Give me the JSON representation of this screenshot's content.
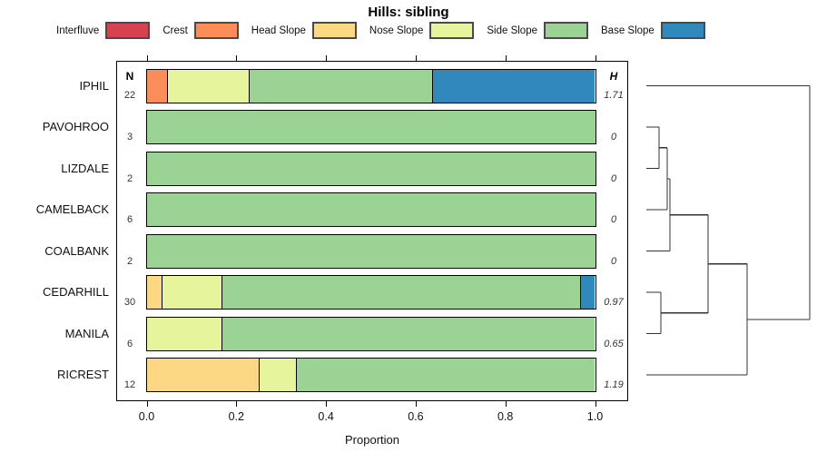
{
  "chart_data": {
    "type": "bar",
    "orientation": "horizontal",
    "stacked": true,
    "title": "Hills: sibling",
    "xlabel": "Proportion",
    "xlim": [
      0,
      1
    ],
    "x_tick_labels": [
      "0.0",
      "0.2",
      "0.4",
      "0.6",
      "0.8",
      "1.0"
    ],
    "x_tick_values": [
      0,
      0.2,
      0.4,
      0.6,
      0.8,
      1.0
    ],
    "grid": false,
    "legend_position": "top",
    "n_header": "N",
    "h_header": "H",
    "classes": [
      {
        "label": "Interfluve",
        "color": "#d6424e"
      },
      {
        "label": "Crest",
        "color": "#fb8d58"
      },
      {
        "label": "Head Slope",
        "color": "#fcd884"
      },
      {
        "label": "Nose Slope",
        "color": "#e6f59b"
      },
      {
        "label": "Side Slope",
        "color": "#9ad394"
      },
      {
        "label": "Base Slope",
        "color": "#3088bd"
      }
    ],
    "rows": [
      {
        "name": "IPHIL",
        "n": 22,
        "h": "1.71",
        "segments": [
          {
            "class": "Crest",
            "p": 0.045
          },
          {
            "class": "Nose Slope",
            "p": 0.182
          },
          {
            "class": "Side Slope",
            "p": 0.409
          },
          {
            "class": "Base Slope",
            "p": 0.364
          }
        ]
      },
      {
        "name": "PAVOHROO",
        "n": 3,
        "h": "0",
        "segments": [
          {
            "class": "Side Slope",
            "p": 1.0
          }
        ]
      },
      {
        "name": "LIZDALE",
        "n": 2,
        "h": "0",
        "segments": [
          {
            "class": "Side Slope",
            "p": 1.0
          }
        ]
      },
      {
        "name": "CAMELBACK",
        "n": 6,
        "h": "0",
        "segments": [
          {
            "class": "Side Slope",
            "p": 1.0
          }
        ]
      },
      {
        "name": "COALBANK",
        "n": 2,
        "h": "0",
        "segments": [
          {
            "class": "Side Slope",
            "p": 1.0
          }
        ]
      },
      {
        "name": "CEDARHILL",
        "n": 30,
        "h": "0.97",
        "segments": [
          {
            "class": "Head Slope",
            "p": 0.033
          },
          {
            "class": "Nose Slope",
            "p": 0.134
          },
          {
            "class": "Side Slope",
            "p": 0.8
          },
          {
            "class": "Base Slope",
            "p": 0.033
          }
        ]
      },
      {
        "name": "MANILA",
        "n": 6,
        "h": "0.65",
        "segments": [
          {
            "class": "Nose Slope",
            "p": 0.167
          },
          {
            "class": "Side Slope",
            "p": 0.833
          }
        ]
      },
      {
        "name": "RICREST",
        "n": 12,
        "h": "1.19",
        "segments": [
          {
            "class": "Head Slope",
            "p": 0.25
          },
          {
            "class": "Nose Slope",
            "p": 0.083
          },
          {
            "class": "Side Slope",
            "p": 0.667
          }
        ]
      }
    ],
    "dendrogram": {
      "side": "right",
      "merges": [
        {
          "a": "PAVOHROO",
          "b": "LIZDALE",
          "h": 0.078
        },
        {
          "a": "m0",
          "b": "CAMELBACK",
          "h": 0.128
        },
        {
          "a": "m1",
          "b": "COALBANK",
          "h": 0.144
        },
        {
          "a": "CEDARHILL",
          "b": "MANILA",
          "h": 0.089
        },
        {
          "a": "m2",
          "b": "m3",
          "h": 0.378
        },
        {
          "a": "m4",
          "b": "RICREST",
          "h": 0.617
        },
        {
          "a": "m5",
          "b": "IPHIL",
          "h": 1.0
        }
      ]
    }
  }
}
